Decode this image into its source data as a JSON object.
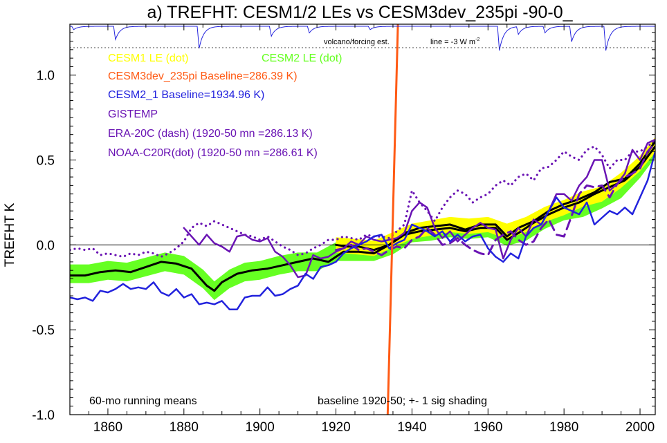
{
  "chart_data": {
    "type": "line",
    "title": "a) TREFHT: CESM1/2 LEs vs CESM3dev_235pi -90-0_",
    "ylabel": "TREFHT K",
    "xlim": [
      1850,
      2004
    ],
    "ylim": [
      -1.0,
      1.3
    ],
    "x_ticks": [
      1860,
      1880,
      1900,
      1920,
      1940,
      1960,
      1980,
      2000
    ],
    "y_ticks": [
      -1.0,
      -0.5,
      0.0,
      0.5,
      1.0
    ],
    "y_tick_labels": [
      "-1.0",
      "-0.5",
      "0.0",
      "0.5",
      "1.0"
    ],
    "zero_line": true,
    "legend": [
      {
        "text": "CESM1 LE (dot)",
        "color": "#ffff00"
      },
      {
        "text": "CESM2 LE (dot)",
        "color": "#66ff22"
      },
      {
        "text": "CESM3dev_235pi Baseline=286.39 K)",
        "color": "#ff5a14"
      },
      {
        "text": "CESM2_1 Baseline=1934.96 K)",
        "color": "#2222dd"
      },
      {
        "text": "GISTEMP",
        "color": "#6a14b4"
      },
      {
        "text": "ERA-20C (dash) (1920-50 mn =286.13 K)",
        "color": "#6a14b4"
      },
      {
        "text": "NOAA-C20R(dot) (1920-50 mn =286.61 K)",
        "color": "#6a14b4"
      }
    ],
    "volcano_label": "volcano/forcing est.",
    "forcing_label": "line = -3 W m",
    "forcing_label_sup": "-2",
    "notes": {
      "left": "60-mo running means",
      "right": "baseline 1920-50; +- 1 sig shading"
    },
    "forcing_dips": [
      {
        "year": 1851,
        "depth": 0.15
      },
      {
        "year": 1862,
        "depth": 0.6
      },
      {
        "year": 1884,
        "depth": 1.0
      },
      {
        "year": 1903,
        "depth": 0.45
      },
      {
        "year": 1913,
        "depth": 0.3
      },
      {
        "year": 1929,
        "depth": 0.15
      },
      {
        "year": 1963,
        "depth": 1.1
      },
      {
        "year": 1968,
        "depth": 0.35
      },
      {
        "year": 1975,
        "depth": 0.3
      },
      {
        "year": 1982,
        "depth": 0.7
      },
      {
        "year": 1991,
        "depth": 1.1
      }
    ],
    "series": [
      {
        "name": "CESM1 LE (dot)",
        "style": "band",
        "color": "#ffff00",
        "x": [
          1920,
          1925,
          1930,
          1935,
          1940,
          1945,
          1950,
          1955,
          1960,
          1965,
          1970,
          1975,
          1980,
          1985,
          1990,
          1995,
          2000,
          2004
        ],
        "y": [
          0.0,
          -0.01,
          -0.02,
          0.03,
          0.08,
          0.1,
          0.12,
          0.11,
          0.12,
          0.08,
          0.12,
          0.18,
          0.22,
          0.27,
          0.3,
          0.38,
          0.48,
          0.59
        ],
        "sigma": 0.045
      },
      {
        "name": "CESM2 LE (dot)",
        "style": "band",
        "color": "#66ff22",
        "x": [
          1850,
          1855,
          1860,
          1865,
          1870,
          1875,
          1880,
          1885,
          1888,
          1892,
          1896,
          1900,
          1905,
          1910,
          1915,
          1920,
          1925,
          1930,
          1935,
          1940,
          1945,
          1950,
          1955,
          1960,
          1965,
          1970,
          1975,
          1980,
          1985,
          1990,
          1995,
          2000,
          2004
        ],
        "y": [
          -0.17,
          -0.17,
          -0.15,
          -0.16,
          -0.13,
          -0.1,
          -0.12,
          -0.2,
          -0.27,
          -0.2,
          -0.16,
          -0.15,
          -0.12,
          -0.1,
          -0.1,
          -0.04,
          -0.04,
          -0.04,
          0.0,
          0.07,
          0.08,
          0.1,
          0.09,
          0.1,
          0.05,
          0.08,
          0.15,
          0.2,
          0.22,
          0.27,
          0.33,
          0.45,
          0.57
        ],
        "sigma": 0.055
      },
      {
        "name": "CESM1 LE mean",
        "style": "solid",
        "color": "#000000",
        "width": 3,
        "x": [
          1920,
          1923,
          1926,
          1930,
          1934,
          1938,
          1942,
          1946,
          1950,
          1954,
          1958,
          1962,
          1965,
          1968,
          1972,
          1976,
          1980,
          1984,
          1988,
          1992,
          1996,
          2000,
          2004
        ],
        "y": [
          0.0,
          -0.01,
          -0.01,
          -0.03,
          0.0,
          0.07,
          0.1,
          0.11,
          0.12,
          0.09,
          0.12,
          0.12,
          0.05,
          0.1,
          0.14,
          0.2,
          0.24,
          0.27,
          0.31,
          0.37,
          0.39,
          0.48,
          0.61
        ]
      },
      {
        "name": "CESM2 LE mean",
        "style": "solid",
        "color": "#000000",
        "width": 3,
        "x": [
          1850,
          1854,
          1858,
          1862,
          1866,
          1870,
          1874,
          1878,
          1882,
          1886,
          1888,
          1890,
          1894,
          1898,
          1902,
          1906,
          1910,
          1914,
          1918,
          1922,
          1926,
          1930,
          1934,
          1938,
          1942,
          1946,
          1950,
          1954,
          1958,
          1962,
          1965,
          1968,
          1972,
          1976,
          1980,
          1984,
          1988,
          1992,
          1996,
          2000,
          2004
        ],
        "y": [
          -0.18,
          -0.18,
          -0.16,
          -0.15,
          -0.16,
          -0.13,
          -0.1,
          -0.11,
          -0.14,
          -0.24,
          -0.27,
          -0.22,
          -0.17,
          -0.15,
          -0.14,
          -0.12,
          -0.1,
          -0.08,
          -0.1,
          -0.04,
          -0.04,
          -0.05,
          0.0,
          0.06,
          0.08,
          0.09,
          0.1,
          0.08,
          0.1,
          0.1,
          0.03,
          0.07,
          0.13,
          0.18,
          0.22,
          0.25,
          0.3,
          0.34,
          0.38,
          0.46,
          0.58
        ]
      },
      {
        "name": "CESM3dev_235pi",
        "style": "solid",
        "color": "#ff5a14",
        "width": 3,
        "x": [
          1933.6,
          1936.3
        ],
        "y": [
          -1.0,
          1.3
        ]
      },
      {
        "name": "CESM2_1",
        "style": "solid",
        "color": "#2222dd",
        "width": 2.5,
        "x": [
          1850,
          1852,
          1854,
          1856,
          1858,
          1860,
          1862,
          1864,
          1866,
          1868,
          1870,
          1872,
          1874,
          1876,
          1878,
          1880,
          1882,
          1884,
          1886,
          1888,
          1890,
          1892,
          1894,
          1896,
          1898,
          1900,
          1902,
          1904,
          1906,
          1908,
          1910,
          1912,
          1914,
          1916,
          1918,
          1920,
          1922,
          1924,
          1926,
          1928,
          1930,
          1932,
          1934,
          1936,
          1938,
          1940,
          1942,
          1944,
          1946,
          1948,
          1950,
          1952,
          1954,
          1956,
          1958,
          1960,
          1962,
          1964,
          1966,
          1968,
          1970,
          1972,
          1974,
          1976,
          1978,
          1980,
          1982,
          1984,
          1986,
          1988,
          1990,
          1992,
          1994,
          1996,
          1998,
          2000,
          2002,
          2004
        ],
        "y": [
          -0.31,
          -0.32,
          -0.31,
          -0.33,
          -0.27,
          -0.28,
          -0.26,
          -0.23,
          -0.26,
          -0.25,
          -0.26,
          -0.22,
          -0.28,
          -0.3,
          -0.26,
          -0.31,
          -0.29,
          -0.35,
          -0.34,
          -0.35,
          -0.33,
          -0.38,
          -0.38,
          -0.31,
          -0.3,
          -0.3,
          -0.25,
          -0.3,
          -0.29,
          -0.26,
          -0.24,
          -0.17,
          -0.2,
          -0.13,
          -0.12,
          -0.1,
          -0.05,
          -0.02,
          0.0,
          0.02,
          0.05,
          0.06,
          -0.02,
          0.01,
          0.03,
          0.12,
          0.1,
          0.08,
          0.05,
          0.08,
          0.02,
          0.06,
          0.02,
          0.05,
          0.06,
          -0.02,
          -0.07,
          -0.1,
          -0.05,
          -0.08,
          0.05,
          0.1,
          0.12,
          0.2,
          0.28,
          0.22,
          0.2,
          0.18,
          0.25,
          0.12,
          0.16,
          0.2,
          0.18,
          0.22,
          0.18,
          0.28,
          0.38,
          0.55
        ]
      },
      {
        "name": "GISTEMP",
        "style": "solid",
        "color": "#6a14b4",
        "width": 2.5,
        "x": [
          1880,
          1882,
          1884,
          1886,
          1888,
          1890,
          1892,
          1894,
          1896,
          1898,
          1900,
          1902,
          1904,
          1906,
          1908,
          1910,
          1912,
          1914,
          1916,
          1918,
          1920,
          1922,
          1924,
          1926,
          1928,
          1930,
          1932,
          1934,
          1936,
          1938,
          1940,
          1942,
          1944,
          1946,
          1948,
          1950,
          1952,
          1954,
          1956,
          1958,
          1960,
          1962,
          1964,
          1966,
          1968,
          1970,
          1972,
          1974,
          1976,
          1978,
          1980,
          1982,
          1984,
          1986,
          1988,
          1990,
          1992,
          1994,
          1996,
          1998,
          2000,
          2002,
          2004
        ],
        "y": [
          0.1,
          0.05,
          0.0,
          0.06,
          0.01,
          -0.01,
          -0.04,
          0.05,
          0.06,
          0.03,
          0.02,
          0.04,
          -0.04,
          -0.07,
          -0.12,
          -0.19,
          -0.18,
          -0.06,
          -0.08,
          -0.07,
          -0.04,
          -0.02,
          0.02,
          0.0,
          0.05,
          0.03,
          0.02,
          0.03,
          0.04,
          0.07,
          0.2,
          0.25,
          0.22,
          0.1,
          0.04,
          0.08,
          0.02,
          0.06,
          0.1,
          0.13,
          0.1,
          0.09,
          -0.08,
          0.03,
          0.1,
          0.05,
          0.15,
          0.12,
          0.2,
          0.3,
          0.3,
          0.26,
          0.35,
          0.4,
          0.5,
          0.5,
          0.32,
          0.36,
          0.42,
          0.56,
          0.5,
          0.6,
          0.62
        ]
      },
      {
        "name": "ERA-20C (dash)",
        "style": "dash",
        "color": "#6a14b4",
        "width": 3,
        "x": [
          1920,
          1922,
          1924,
          1926,
          1928,
          1930,
          1932,
          1934,
          1936,
          1938,
          1940,
          1942,
          1944,
          1946,
          1948,
          1950,
          1952,
          1954,
          1956,
          1958,
          1960,
          1962,
          1964,
          1966,
          1968,
          1970,
          1972,
          1974,
          1976,
          1978,
          1980,
          1982,
          1984,
          1986,
          1988,
          1990,
          1992,
          1994,
          1996,
          1998,
          2000,
          2002,
          2004
        ],
        "y": [
          -0.03,
          -0.02,
          0.0,
          -0.03,
          -0.02,
          -0.04,
          -0.06,
          -0.03,
          -0.01,
          -0.02,
          0.03,
          0.05,
          0.1,
          0.06,
          0.0,
          0.01,
          0.04,
          0.0,
          -0.03,
          -0.05,
          -0.06,
          0.03,
          0.06,
          0.08,
          0.03,
          0.0,
          0.02,
          0.1,
          0.15,
          0.06,
          0.05,
          0.17,
          0.3,
          0.35,
          0.34,
          0.35,
          0.28,
          0.36,
          0.4,
          0.42,
          0.45,
          0.55,
          0.6
        ]
      },
      {
        "name": "NOAA-C20R (dot)",
        "style": "dot",
        "color": "#6a14b4",
        "width": 3,
        "x": [
          1850,
          1852,
          1854,
          1856,
          1858,
          1860,
          1862,
          1864,
          1866,
          1868,
          1870,
          1872,
          1874,
          1876,
          1878,
          1880,
          1882,
          1884,
          1886,
          1888,
          1890,
          1892,
          1894,
          1896,
          1898,
          1900,
          1902,
          1904,
          1906,
          1908,
          1910,
          1912,
          1914,
          1916,
          1918,
          1920,
          1922,
          1924,
          1926,
          1928,
          1930,
          1932,
          1934,
          1936,
          1938,
          1940,
          1942,
          1944,
          1946,
          1948,
          1950,
          1952,
          1954,
          1956,
          1958,
          1960,
          1962,
          1964,
          1966,
          1968,
          1970,
          1972,
          1974,
          1976,
          1978,
          1980,
          1982,
          1984,
          1986,
          1988,
          1990,
          1992,
          1994,
          1996,
          1998,
          2000,
          2002,
          2004
        ],
        "y": [
          -0.03,
          -0.02,
          -0.03,
          -0.02,
          -0.06,
          -0.05,
          -0.06,
          -0.07,
          -0.05,
          -0.06,
          -0.04,
          -0.05,
          -0.07,
          -0.05,
          -0.02,
          0.02,
          0.1,
          0.13,
          0.11,
          0.14,
          0.12,
          0.1,
          0.08,
          0.06,
          0.05,
          0.03,
          0.05,
          0.02,
          -0.01,
          -0.03,
          -0.06,
          -0.05,
          -0.02,
          0.0,
          0.03,
          0.03,
          0.05,
          0.04,
          0.03,
          0.06,
          0.05,
          0.05,
          0.04,
          0.08,
          0.12,
          0.32,
          0.25,
          0.2,
          0.14,
          0.22,
          0.28,
          0.32,
          0.3,
          0.25,
          0.28,
          0.3,
          0.35,
          0.38,
          0.35,
          0.4,
          0.42,
          0.38,
          0.45,
          0.46,
          0.5,
          0.55,
          0.52,
          0.5,
          0.56,
          0.58,
          0.53,
          0.45,
          0.5,
          0.5,
          0.55,
          0.55,
          0.58,
          0.62
        ]
      }
    ]
  }
}
